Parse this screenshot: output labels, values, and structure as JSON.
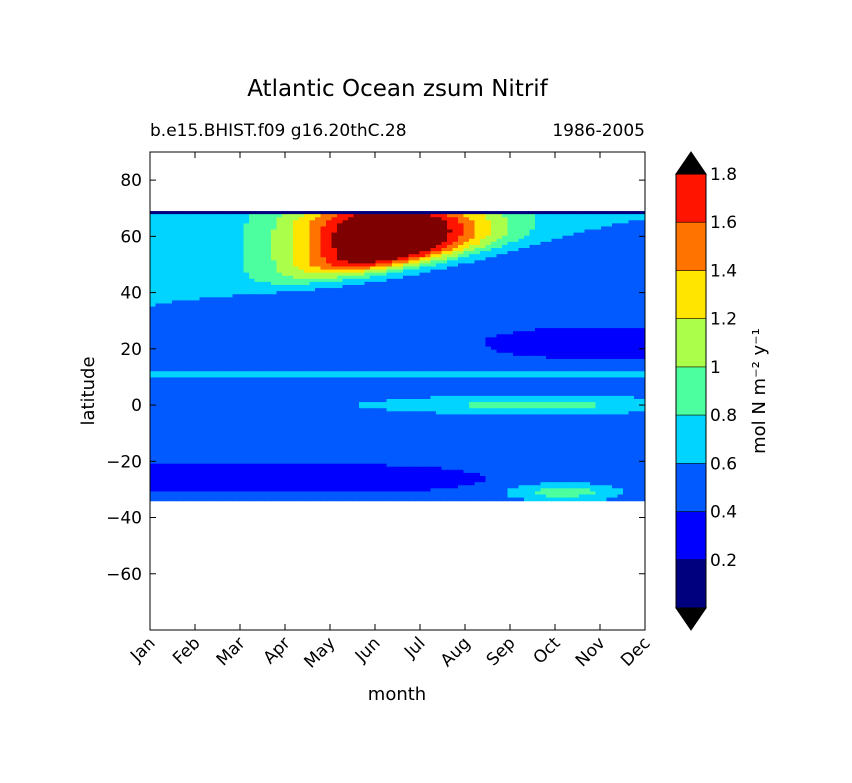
{
  "chart_data": {
    "type": "heatmap",
    "title": "Atlantic Ocean zsum Nitrif",
    "subtitle_left": "b.e15.BHIST.f09 g16.20thC.28",
    "subtitle_right": "1986-2005",
    "xlabel": "month",
    "ylabel": "latitude",
    "x_ticks": [
      "Jan",
      "Feb",
      "Mar",
      "Apr",
      "May",
      "Jun",
      "Jul",
      "Aug",
      "Sep",
      "Oct",
      "Nov",
      "Dec"
    ],
    "y_ticks": [
      80,
      60,
      40,
      20,
      0,
      -20,
      -40,
      -60
    ],
    "y_tick_labels": [
      "80",
      "60",
      "40",
      "20",
      "0",
      "−20",
      "−40",
      "−60"
    ],
    "xlim": [
      0,
      11
    ],
    "ylim": [
      -80,
      90
    ],
    "data_lat_range": [
      -34,
      69
    ],
    "grid": false,
    "colorbar": {
      "label": "mol N m⁻² y⁻¹",
      "tick_labels": [
        "0.2",
        "0.4",
        "0.6",
        "0.8",
        "1",
        "1.2",
        "1.4",
        "1.6",
        "1.8"
      ],
      "levels": [
        0.2,
        0.4,
        0.6,
        0.8,
        1.0,
        1.2,
        1.4,
        1.6,
        1.8
      ],
      "extend": "both",
      "colors": [
        "#00007f",
        "#0000ff",
        "#005aff",
        "#00d4ff",
        "#4cff9f",
        "#abff4a",
        "#ffe500",
        "#ff7400",
        "#ff1400",
        "#7f0000",
        "#000000"
      ]
    }
  }
}
